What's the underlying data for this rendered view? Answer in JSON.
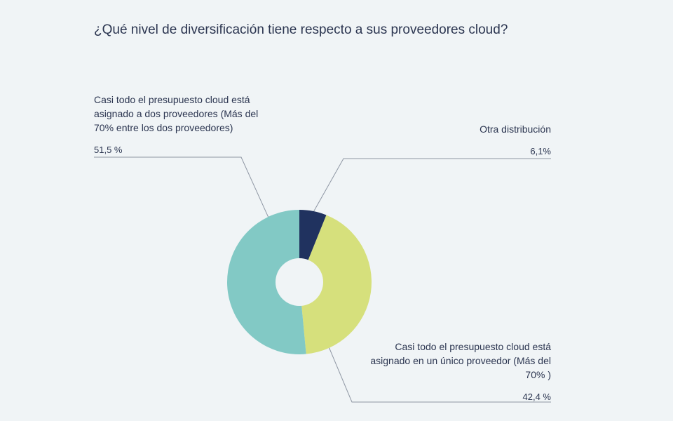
{
  "chart_data": {
    "type": "pie",
    "title": "¿Qué nivel de diversificación tiene respecto a sus proveedores cloud?",
    "slices": [
      {
        "label": "Otra distribución",
        "value": 6.1,
        "value_label": "6,1%",
        "color": "#20325f"
      },
      {
        "label": "Casi todo el presupuesto cloud está asignado en un único proveedor (Más del 70% )",
        "value": 42.4,
        "value_label": "42,4 %",
        "color": "#d6e07c"
      },
      {
        "label": "Casi todo el presupuesto cloud está asignado a dos proveedores (Más del 70% entre los dos proveedores)",
        "value": 51.5,
        "value_label": "51,5 %",
        "color": "#82c9c5"
      }
    ],
    "donut": true,
    "legend": "callouts"
  }
}
